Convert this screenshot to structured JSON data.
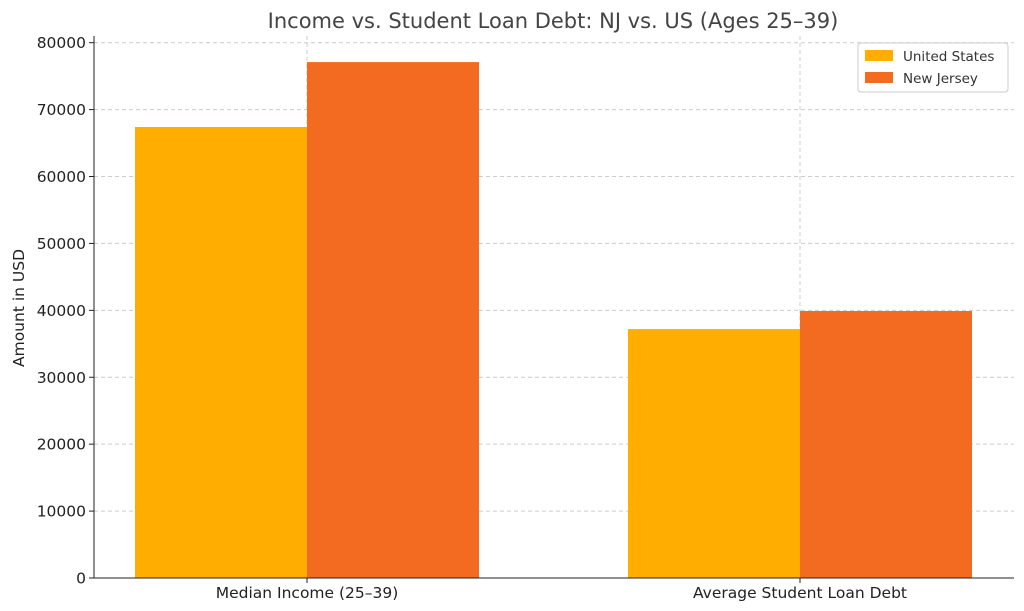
{
  "chart_data": {
    "type": "bar",
    "title": "Income vs. Student Loan Debt: NJ vs. US (Ages 25–39)",
    "xlabel": "",
    "ylabel": "Amount in USD",
    "categories": [
      "Median Income (25–39)",
      "Average Student Loan Debt"
    ],
    "series": [
      {
        "name": "United States",
        "color": "#FFAE00",
        "values": [
          67400,
          37200
        ]
      },
      {
        "name": "New Jersey",
        "color": "#F26B21",
        "values": [
          77100,
          39900
        ]
      }
    ],
    "ylim": [
      0,
      81000
    ],
    "yticks": [
      0,
      10000,
      20000,
      30000,
      40000,
      50000,
      60000,
      70000,
      80000
    ],
    "grid": true,
    "legend": "top-right"
  }
}
